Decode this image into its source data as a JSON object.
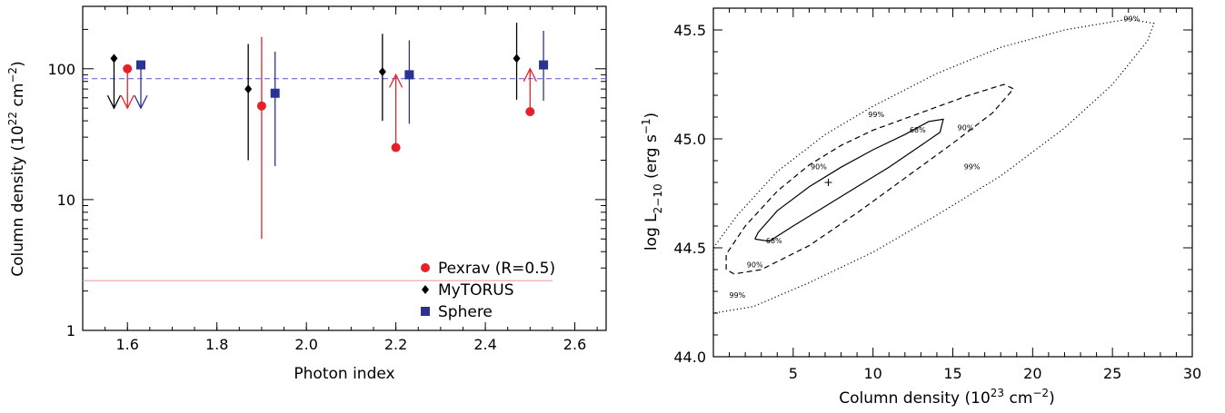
{
  "chart_data": [
    {
      "type": "scatter",
      "xlabel": "Photon index",
      "ylabel": "Column density (10",
      "ylabel_sup": "22",
      "ylabel_mid": " cm",
      "ylabel_sup2": "−2",
      "ylabel_end": ")",
      "xlim": [
        1.5,
        2.67
      ],
      "ylim": [
        1,
        300
      ],
      "yscale": "log",
      "xticks": [
        1.6,
        1.8,
        2.0,
        2.2,
        2.4,
        2.6
      ],
      "xtick_labels": [
        "1.6",
        "1.8",
        "2.0",
        "2.2",
        "2.4",
        "2.6"
      ],
      "yticks": [
        1,
        10,
        100
      ],
      "ytick_labels": [
        "1",
        "10",
        "100"
      ],
      "reference_lines": [
        {
          "y": 84,
          "style": "dashed",
          "color": "#6b6bd6"
        },
        {
          "y": 2.4,
          "style": "solid",
          "color": "#e8a0a0",
          "x_range": [
            1.5,
            2.55
          ]
        }
      ],
      "legend": {
        "position": "bottom-right",
        "entries": [
          {
            "label": "Pexrav (R=0.5)",
            "marker": "circle",
            "color": "#e8202a"
          },
          {
            "label": "MyTORUS",
            "marker": "diamond",
            "color": "#000000"
          },
          {
            "label": "Sphere",
            "marker": "square",
            "color": "#2b3392"
          }
        ]
      },
      "series": [
        {
          "name": "Pexrav (R=0.5)",
          "color": "#e8202a",
          "marker": "circle",
          "points": [
            {
              "x": 1.6,
              "y": 100,
              "limit": "upper",
              "arrow_to": 50
            },
            {
              "x": 1.9,
              "y": 52,
              "err": [
                5,
                175
              ]
            },
            {
              "x": 2.2,
              "y": 25,
              "limit": "lower",
              "arrow_to": 90
            },
            {
              "x": 2.5,
              "y": 47,
              "limit": "lower",
              "arrow_to": 100
            }
          ]
        },
        {
          "name": "MyTORUS",
          "color": "#000000",
          "marker": "diamond",
          "points": [
            {
              "x": 1.57,
              "y": 120,
              "limit": "upper",
              "arrow_to": 50
            },
            {
              "x": 1.87,
              "y": 70,
              "err": [
                20,
                155
              ]
            },
            {
              "x": 2.17,
              "y": 95,
              "err": [
                40,
                185
              ]
            },
            {
              "x": 2.47,
              "y": 120,
              "err": [
                58,
                225
              ]
            }
          ]
        },
        {
          "name": "Sphere",
          "color": "#2b3392",
          "marker": "square",
          "points": [
            {
              "x": 1.63,
              "y": 107,
              "limit": "upper",
              "arrow_to": 50
            },
            {
              "x": 1.93,
              "y": 65,
              "err": [
                18,
                135
              ]
            },
            {
              "x": 2.23,
              "y": 90,
              "err": [
                38,
                165
              ]
            },
            {
              "x": 2.53,
              "y": 107,
              "err": [
                57,
                195
              ]
            }
          ]
        }
      ]
    },
    {
      "type": "contour",
      "xlabel": "Column density (10",
      "xlabel_sup": "23",
      "xlabel_mid": " cm",
      "xlabel_sup2": "−2",
      "xlabel_end": ")",
      "ylabel": "log L",
      "ylabel_sub": "2−10",
      "ylabel_mid": " (erg s",
      "ylabel_sup": "−1",
      "ylabel_end": ")",
      "xlim": [
        0,
        30
      ],
      "ylim": [
        44.0,
        45.6
      ],
      "xticks": [
        5,
        10,
        15,
        20,
        25,
        30
      ],
      "xtick_labels": [
        "5",
        "10",
        "15",
        "20",
        "25",
        "30"
      ],
      "yticks": [
        44.0,
        44.5,
        45.0,
        45.5
      ],
      "ytick_labels": [
        "44.0",
        "44.5",
        "45.0",
        "45.5"
      ],
      "best_fit": {
        "x": 7.2,
        "y": 44.8
      },
      "contours": [
        {
          "level": "68%",
          "style": "solid",
          "points": [
            [
              2.6,
              44.54
            ],
            [
              2.8,
              44.57
            ],
            [
              4,
              44.67
            ],
            [
              6,
              44.78
            ],
            [
              8,
              44.87
            ],
            [
              10,
              44.95
            ],
            [
              12,
              45.02
            ],
            [
              13.5,
              45.08
            ],
            [
              14.4,
              45.09
            ],
            [
              14.2,
              45.03
            ],
            [
              13,
              44.97
            ],
            [
              11,
              44.87
            ],
            [
              9,
              44.78
            ],
            [
              7,
              44.69
            ],
            [
              5,
              44.6
            ],
            [
              3.5,
              44.53
            ],
            [
              2.6,
              44.54
            ]
          ],
          "labels": [
            {
              "text": "68%",
              "x": 12.8,
              "y": 45.03
            },
            {
              "text": "68%",
              "x": 3.8,
              "y": 44.52
            }
          ]
        },
        {
          "level": "90%",
          "style": "dashed",
          "points": [
            [
              0.8,
              44.4
            ],
            [
              0.8,
              44.47
            ],
            [
              2,
              44.6
            ],
            [
              4,
              44.76
            ],
            [
              6,
              44.88
            ],
            [
              8,
              44.97
            ],
            [
              10,
              45.04
            ],
            [
              13,
              45.12
            ],
            [
              16,
              45.2
            ],
            [
              18.2,
              45.25
            ],
            [
              18.8,
              45.23
            ],
            [
              17.5,
              45.12
            ],
            [
              15,
              44.98
            ],
            [
              12,
              44.82
            ],
            [
              9,
              44.66
            ],
            [
              6,
              44.51
            ],
            [
              3,
              44.4
            ],
            [
              1.3,
              44.38
            ],
            [
              0.8,
              44.4
            ]
          ],
          "labels": [
            {
              "text": "90%",
              "x": 6.6,
              "y": 44.86
            },
            {
              "text": "90%",
              "x": 15.8,
              "y": 45.04
            },
            {
              "text": "90%",
              "x": 2.6,
              "y": 44.41
            }
          ]
        },
        {
          "level": "99%",
          "style": "dotted",
          "points": [
            [
              0,
              44.2
            ],
            [
              0,
              44.5
            ],
            [
              1.5,
              44.65
            ],
            [
              4,
              44.85
            ],
            [
              7,
              45.02
            ],
            [
              10,
              45.15
            ],
            [
              14,
              45.3
            ],
            [
              18,
              45.42
            ],
            [
              22,
              45.5
            ],
            [
              26,
              45.55
            ],
            [
              27.6,
              45.53
            ],
            [
              27.2,
              45.45
            ],
            [
              25,
              45.25
            ],
            [
              22,
              45.05
            ],
            [
              18,
              44.83
            ],
            [
              14,
              44.65
            ],
            [
              10,
              44.48
            ],
            [
              6,
              44.34
            ],
            [
              2.5,
              44.23
            ],
            [
              0,
              44.2
            ]
          ],
          "labels": [
            {
              "text": "99%",
              "x": 10.2,
              "y": 45.1
            },
            {
              "text": "99%",
              "x": 16.2,
              "y": 44.86
            },
            {
              "text": "99%",
              "x": 26.2,
              "y": 45.54
            },
            {
              "text": "99%",
              "x": 1.5,
              "y": 44.27
            }
          ]
        }
      ]
    }
  ]
}
